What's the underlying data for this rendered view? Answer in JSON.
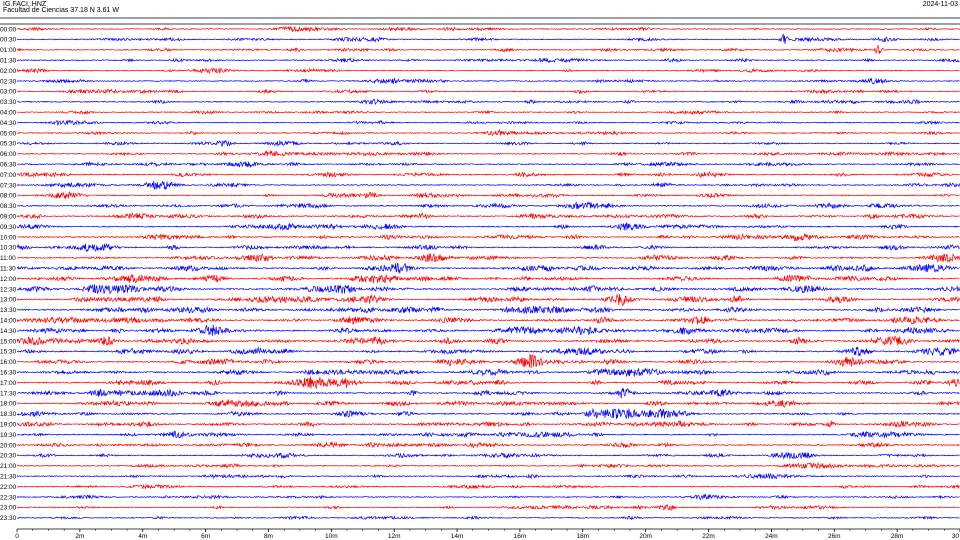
{
  "header": {
    "station": "IG.FACI..HNZ",
    "subtitle": "Facultad de Ciencias  37.18 N 3.61 W",
    "date": "2024-11-03"
  },
  "chart_data": {
    "type": "line",
    "title": "",
    "xlabel": "",
    "ylabel": "",
    "x_ticks": [
      "0",
      "2m",
      "4m",
      "6m",
      "8m",
      "10m",
      "12m",
      "14m",
      "16m",
      "18m",
      "20m",
      "22m",
      "24m",
      "26m",
      "28m",
      "30"
    ],
    "xlim": [
      0,
      30
    ],
    "row_labels": [
      "00:00",
      "00:30",
      "01:00",
      "01:30",
      "02:00",
      "02:30",
      "03:00",
      "03:30",
      "04:00",
      "04:30",
      "05:00",
      "05:30",
      "06:00",
      "06:30",
      "07:00",
      "07:30",
      "08:00",
      "08:30",
      "09:00",
      "09:30",
      "10:00",
      "10:30",
      "11:00",
      "11:30",
      "12:00",
      "12:30",
      "13:00",
      "13:30",
      "14:00",
      "14:30",
      "15:00",
      "15:30",
      "16:00",
      "16:30",
      "17:00",
      "17:30",
      "18:00",
      "18:30",
      "19:00",
      "19:30",
      "20:00",
      "20:30",
      "21:00",
      "21:30",
      "22:00",
      "22:30",
      "23:00",
      "23:30"
    ],
    "colors": [
      "#ff0000",
      "#0000ff"
    ],
    "activity": [
      0.35,
      0.4,
      0.45,
      0.4,
      0.35,
      0.4,
      0.35,
      0.35,
      0.3,
      0.35,
      0.35,
      0.4,
      0.45,
      0.45,
      0.5,
      0.5,
      0.55,
      0.6,
      0.65,
      0.65,
      0.7,
      0.7,
      0.8,
      0.85,
      0.85,
      0.9,
      0.9,
      0.9,
      0.95,
      0.9,
      0.9,
      0.9,
      0.85,
      0.85,
      0.85,
      0.8,
      0.75,
      0.7,
      0.7,
      0.65,
      0.6,
      0.55,
      0.45,
      0.4,
      0.4,
      0.4,
      0.4,
      0.3
    ],
    "events": [
      {
        "row": 1,
        "minute": 24.4
      },
      {
        "row": 2,
        "minute": 27.4
      },
      {
        "row": 38,
        "minute": 25.9
      }
    ]
  }
}
